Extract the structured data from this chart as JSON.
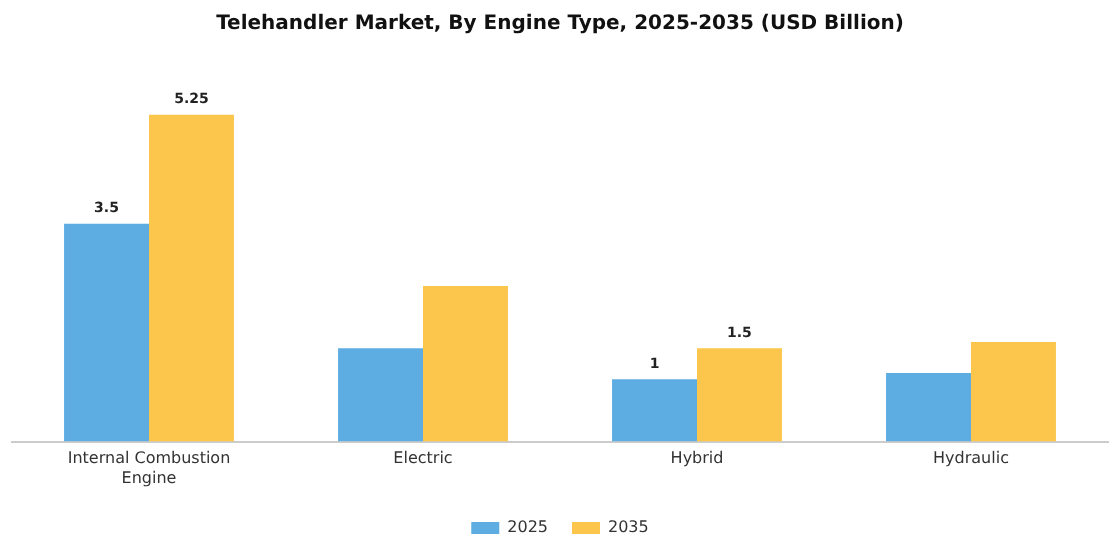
{
  "chart_data": {
    "type": "bar",
    "title": "Telehandler Market, By Engine Type, 2025-2035 (USD Billion)",
    "categories": [
      "Internal Combustion Engine",
      "Electric",
      "Hybrid",
      "Hydraulic"
    ],
    "series": [
      {
        "name": "2025",
        "color": "#5dade2",
        "values": [
          3.5,
          1.5,
          1,
          1.1
        ],
        "value_labels": [
          "3.5",
          null,
          "1",
          null
        ]
      },
      {
        "name": "2035",
        "color": "#fbc64b",
        "values": [
          5.25,
          2.5,
          1.5,
          1.6
        ],
        "value_labels": [
          "5.25",
          null,
          "1.5",
          null
        ]
      }
    ],
    "tick_labels": "x",
    "grid": false,
    "legend": "bottom"
  }
}
